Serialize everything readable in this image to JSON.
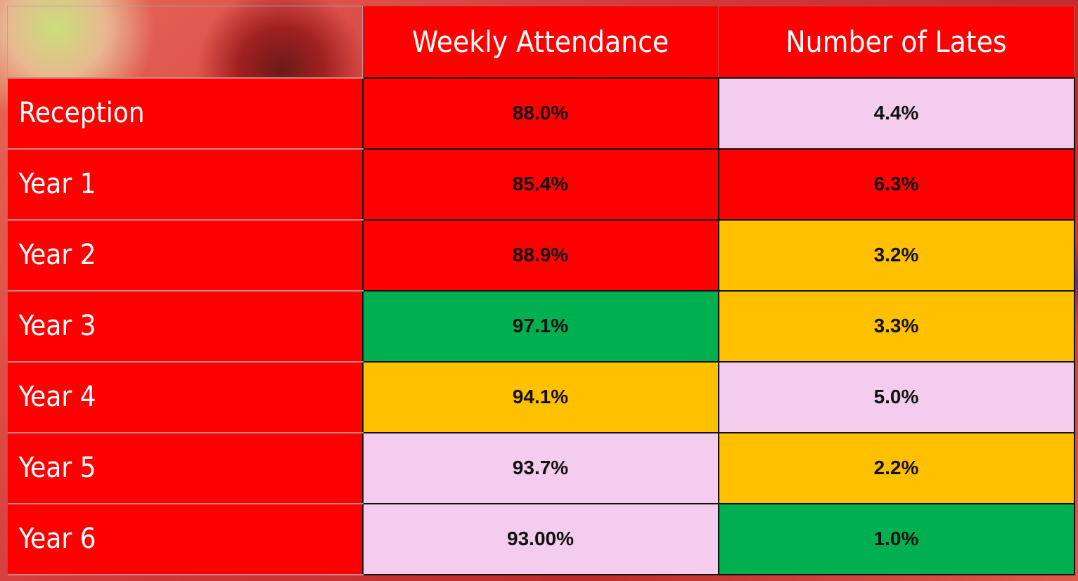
{
  "table": {
    "header": [
      "Weekly Attendance",
      "Number of Lates"
    ],
    "rows": [
      [
        "Reception",
        "88.0%",
        "4.4%"
      ],
      [
        "Year 1",
        "85.4%",
        "6.3%"
      ],
      [
        "Year 2",
        "88.9%",
        "3.2%"
      ],
      [
        "Year 3",
        "97.1%",
        "3.3%"
      ],
      [
        "Year 4",
        "94.1%",
        "5.0%"
      ],
      [
        "Year 5",
        "93.7%",
        "2.2%"
      ],
      [
        "Year 6",
        "93.00%",
        "1.0%"
      ]
    ]
  }
}
